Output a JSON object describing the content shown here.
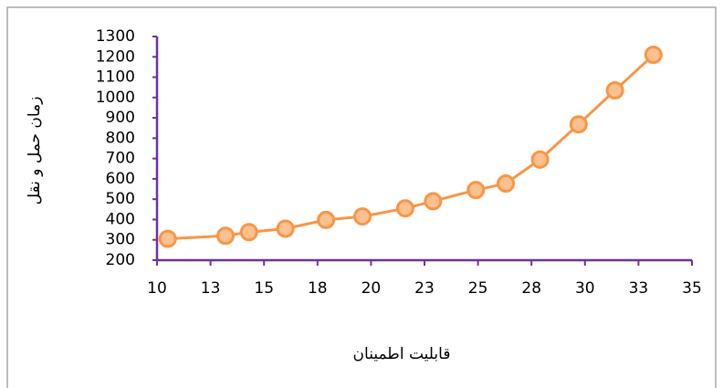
{
  "chart_data": {
    "type": "line",
    "x_label": "قابليت اطمينان",
    "y_label": "زمان حمل و نقل",
    "x": [
      10.5,
      13.2,
      14.3,
      16,
      17.9,
      19.6,
      21.6,
      22.9,
      24.9,
      26.3,
      27.9,
      29.7,
      31.4,
      33.2
    ],
    "series": [
      {
        "color": "#f79646",
        "marker_fill": "#fac090",
        "values": [
          305,
          320,
          338,
          355,
          398,
          415,
          455,
          490,
          545,
          577,
          695,
          868,
          1035,
          1210
        ]
      }
    ],
    "xlim": [
      10,
      35
    ],
    "xticks": [
      10,
      {
        "value": 12.5,
        "label": "13"
      },
      15,
      {
        "value": 17.5,
        "label": "18"
      },
      20,
      {
        "value": 22.5,
        "label": "23"
      },
      25,
      {
        "value": 27.5,
        "label": "28"
      },
      30,
      {
        "value": 32.5,
        "label": "33"
      },
      35
    ],
    "ylim": [
      200,
      1300
    ],
    "yticks": [
      200,
      300,
      400,
      500,
      600,
      700,
      800,
      900,
      1000,
      1100,
      1200,
      1300
    ],
    "axis_color": "#7030a0",
    "grid": false
  }
}
